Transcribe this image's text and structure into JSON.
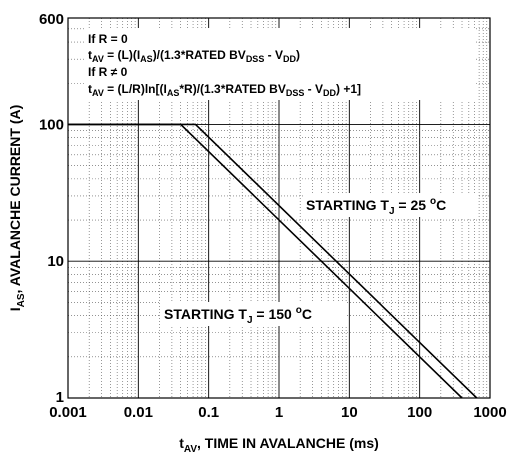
{
  "chart_data": {
    "type": "line",
    "x_scale": "log",
    "y_scale": "log",
    "xlim": [
      0.001,
      1000
    ],
    "ylim": [
      1,
      600
    ],
    "grid": true,
    "x_ticks": [
      "0.001",
      "0.01",
      "0.1",
      "1",
      "10",
      "100",
      "1000"
    ],
    "y_ticks": [
      "1",
      "10",
      "100",
      "600"
    ],
    "xlabel": {
      "main": "t",
      "sub": "AV",
      "rest": ", TIME IN AVALANCHE (ms)"
    },
    "ylabel": {
      "main": "I",
      "sub": "AS",
      "rest": ", AVALANCHE CURRENT (A)"
    },
    "annotations": {
      "line1": "If R = 0",
      "line2": {
        "t": "t",
        "t_sub": "AV",
        "a": " = (L)(I",
        "a_sub": "AS",
        "b": ")/(1.3*RATED BV",
        "b_sub": "DSS",
        "c": " - V",
        "c_sub": "DD",
        "d": ")"
      },
      "line3": "If R ≠ 0",
      "line4": {
        "t": "t",
        "t_sub": "AV",
        "a": " = (L/R)ln[(I",
        "a_sub": "AS",
        "b": "*R)/(1.3*RATED BV",
        "b_sub": "DSS",
        "c": " - V",
        "c_sub": "DD",
        "d": ") +1]"
      }
    },
    "series": [
      {
        "label": {
          "prefix": "STARTING T",
          "sub": "J",
          "value": " = 25 ",
          "deg": "o",
          "unit": "C"
        },
        "x": [
          0.001,
          0.065,
          650
        ],
        "y": [
          100,
          100,
          1
        ]
      },
      {
        "label": {
          "prefix": "STARTING T",
          "sub": "J",
          "value": " = 150 ",
          "deg": "o",
          "unit": "C"
        },
        "x": [
          0.001,
          0.04,
          400
        ],
        "y": [
          100,
          100,
          1
        ]
      }
    ]
  }
}
